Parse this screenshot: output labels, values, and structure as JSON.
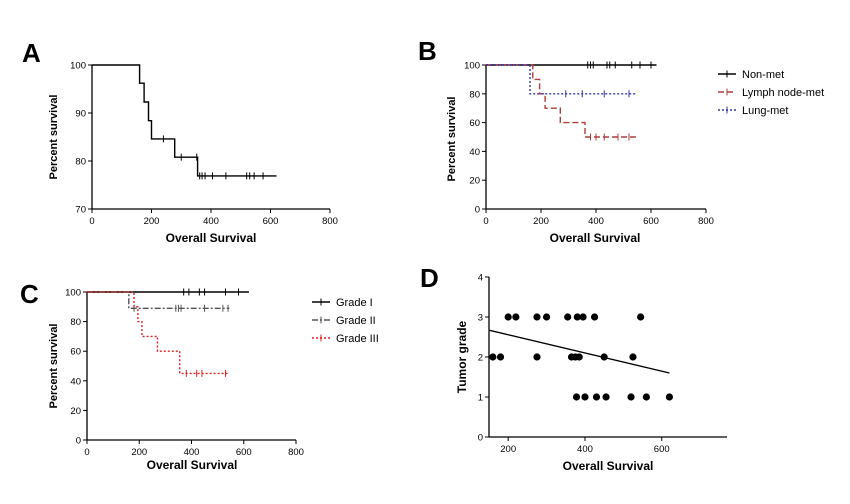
{
  "chart_data": [
    {
      "panel": "A",
      "type": "line",
      "xlabel": "Overall Survival",
      "ylabel": "Percent survival",
      "xlim": [
        0,
        800
      ],
      "ylim": [
        70,
        100
      ],
      "xticks": [
        0,
        200,
        400,
        600,
        800
      ],
      "yticks": [
        70,
        80,
        90,
        100
      ],
      "legend": "none",
      "series": [
        {
          "style": "solid",
          "color": "#000000",
          "steps": [
            [
              0,
              100
            ],
            [
              160,
              100
            ],
            [
              160,
              96.2
            ],
            [
              175,
              96.2
            ],
            [
              175,
              92.3
            ],
            [
              190,
              92.3
            ],
            [
              190,
              88.4
            ],
            [
              200,
              88.4
            ],
            [
              200,
              84.6
            ],
            [
              240,
              84.6
            ],
            [
              240,
              84.6
            ],
            [
              278,
              84.6
            ],
            [
              278,
              80.8
            ],
            [
              355,
              80.8
            ],
            [
              355,
              76.9
            ],
            [
              620,
              76.9
            ]
          ],
          "censored": [
            [
              240,
              84.6
            ],
            [
              300,
              80.8
            ],
            [
              352,
              80.8
            ],
            [
              362,
              76.9
            ],
            [
              370,
              76.9
            ],
            [
              380,
              76.9
            ],
            [
              405,
              76.9
            ],
            [
              450,
              76.9
            ],
            [
              520,
              76.9
            ],
            [
              530,
              76.9
            ],
            [
              545,
              76.9
            ],
            [
              575,
              76.9
            ]
          ]
        }
      ]
    },
    {
      "panel": "B",
      "type": "line",
      "xlabel": "Overall Survival",
      "ylabel": "Percent survival",
      "xlim": [
        0,
        800
      ],
      "ylim": [
        0,
        100
      ],
      "xticks": [
        0,
        200,
        400,
        600,
        800
      ],
      "yticks": [
        0,
        20,
        40,
        60,
        80,
        100
      ],
      "legend": "right",
      "series": [
        {
          "name": "Non-met",
          "style": "solid",
          "color": "#000000",
          "steps": [
            [
              0,
              100
            ],
            [
              620,
              100
            ]
          ],
          "censored": [
            [
              370,
              100
            ],
            [
              380,
              100
            ],
            [
              390,
              100
            ],
            [
              440,
              100
            ],
            [
              450,
              100
            ],
            [
              470,
              100
            ],
            [
              530,
              100
            ],
            [
              560,
              100
            ],
            [
              600,
              100
            ]
          ]
        },
        {
          "name": "Lymph node-met",
          "style": "dashed",
          "color": "#b23b3b",
          "steps": [
            [
              0,
              100
            ],
            [
              170,
              100
            ],
            [
              170,
              90
            ],
            [
              195,
              90
            ],
            [
              195,
              80
            ],
            [
              215,
              80
            ],
            [
              215,
              70
            ],
            [
              270,
              70
            ],
            [
              270,
              60
            ],
            [
              360,
              60
            ],
            [
              360,
              50
            ],
            [
              545,
              50
            ]
          ],
          "censored": [
            [
              380,
              50
            ],
            [
              400,
              50
            ],
            [
              430,
              50
            ],
            [
              480,
              50
            ],
            [
              520,
              50
            ]
          ]
        },
        {
          "name": "Lung-met",
          "style": "dotted",
          "color": "#3535a8",
          "steps": [
            [
              0,
              100
            ],
            [
              160,
              100
            ],
            [
              160,
              80
            ],
            [
              545,
              80
            ]
          ],
          "censored": [
            [
              290,
              80
            ],
            [
              350,
              80
            ],
            [
              430,
              80
            ],
            [
              520,
              80
            ]
          ]
        }
      ]
    },
    {
      "panel": "C",
      "type": "line",
      "xlabel": "Overall Survival",
      "ylabel": "Percent survival",
      "xlim": [
        0,
        800
      ],
      "ylim": [
        0,
        100
      ],
      "xticks": [
        0,
        200,
        400,
        600,
        800
      ],
      "yticks": [
        0,
        20,
        40,
        60,
        80,
        100
      ],
      "legend": "right",
      "series": [
        {
          "name": "Grade I",
          "style": "solid",
          "color": "#000000",
          "steps": [
            [
              0,
              100
            ],
            [
              620,
              100
            ]
          ],
          "censored": [
            [
              370,
              100
            ],
            [
              390,
              100
            ],
            [
              430,
              100
            ],
            [
              450,
              100
            ],
            [
              530,
              100
            ],
            [
              580,
              100
            ]
          ]
        },
        {
          "name": "Grade II",
          "style": "dashdot",
          "color": "#555555",
          "steps": [
            [
              0,
              100
            ],
            [
              160,
              100
            ],
            [
              160,
              89
            ],
            [
              545,
              89
            ]
          ],
          "censored": [
            [
              180,
              89
            ],
            [
              340,
              89
            ],
            [
              350,
              89
            ],
            [
              360,
              89
            ],
            [
              450,
              89
            ],
            [
              520,
              89
            ],
            [
              540,
              89
            ]
          ]
        },
        {
          "name": "Grade III",
          "style": "dotted",
          "color": "#e02020",
          "steps": [
            [
              0,
              100
            ],
            [
              180,
              100
            ],
            [
              180,
              90
            ],
            [
              195,
              90
            ],
            [
              195,
              80
            ],
            [
              210,
              80
            ],
            [
              210,
              70
            ],
            [
              270,
              70
            ],
            [
              270,
              60
            ],
            [
              355,
              60
            ],
            [
              355,
              45
            ],
            [
              545,
              45
            ]
          ],
          "censored": [
            [
              380,
              45
            ],
            [
              420,
              45
            ],
            [
              440,
              45
            ],
            [
              530,
              45
            ]
          ]
        }
      ]
    },
    {
      "panel": "D",
      "type": "scatter",
      "xlabel": "Overall Survival",
      "ylabel": "Tumor grade",
      "xlim": [
        150,
        770
      ],
      "ylim": [
        0,
        4
      ],
      "xticks": [
        200,
        400,
        600
      ],
      "yticks": [
        0,
        1,
        2,
        3,
        4
      ],
      "legend": "none",
      "points": [
        [
          160,
          2
        ],
        [
          180,
          2
        ],
        [
          200,
          3
        ],
        [
          220,
          3
        ],
        [
          275,
          2
        ],
        [
          275,
          3
        ],
        [
          300,
          3
        ],
        [
          355,
          3
        ],
        [
          365,
          2
        ],
        [
          375,
          2
        ],
        [
          378,
          1
        ],
        [
          380,
          3
        ],
        [
          385,
          2
        ],
        [
          395,
          3
        ],
        [
          400,
          1
        ],
        [
          425,
          3
        ],
        [
          430,
          1
        ],
        [
          450,
          2
        ],
        [
          455,
          1
        ],
        [
          525,
          2
        ],
        [
          520,
          1
        ],
        [
          545,
          3
        ],
        [
          560,
          1
        ],
        [
          620,
          1
        ]
      ],
      "trendline": [
        [
          150,
          2.67
        ],
        [
          620,
          1.6
        ]
      ]
    }
  ],
  "panels": [
    {
      "letter": "A"
    },
    {
      "letter": "B"
    },
    {
      "letter": "C"
    },
    {
      "letter": "D"
    }
  ]
}
